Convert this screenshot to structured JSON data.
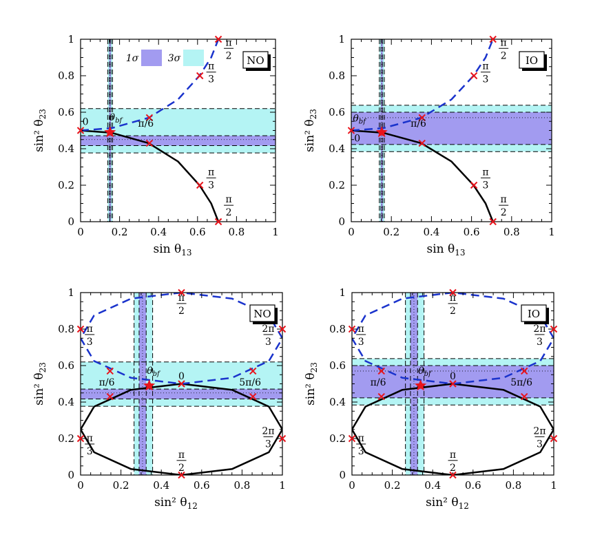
{
  "legend": {
    "one_sigma": "1σ",
    "three_sigma": "3σ"
  },
  "colors": {
    "one_sigma": "#a29bf0",
    "three_sigma": "#b4f4f4",
    "solid": "#000000",
    "dashed": "#1a33cc",
    "marker": "#e8141c",
    "star": "#e8141c"
  },
  "chart_data": [
    {
      "type": "line",
      "ordering": "NO",
      "xlabel": "sin θ",
      "xlabel_sub": "13",
      "ylabel": "sin² θ",
      "ylabel_sub": "23",
      "xlim": [
        0,
        1
      ],
      "ylim": [
        0,
        1
      ],
      "xticks": [
        "0",
        "0.2",
        "0.4",
        "0.6",
        "0.8",
        "1"
      ],
      "yticks": [
        "0",
        "0.2",
        "0.4",
        "0.6",
        "0.8",
        "1"
      ],
      "show_legend": true,
      "x_band": {
        "one_sigma": [
          0.147,
          0.156
        ],
        "three_sigma": [
          0.139,
          0.164
        ],
        "best_fit": 0.151
      },
      "y_band": {
        "one_sigma": [
          0.417,
          0.471
        ],
        "three_sigma": [
          0.377,
          0.62
        ],
        "best_fit": 0.45
      },
      "best_fit": [
        0.151,
        0.49
      ],
      "best_fit_label": "θbf",
      "curves": {
        "solid": {
          "x": [
            0,
            0.16,
            0.35,
            0.5,
            0.61,
            0.67,
            0.707
          ],
          "y": [
            0.5,
            0.487,
            0.43,
            0.33,
            0.2,
            0.1,
            0
          ]
        },
        "dashed": {
          "x": [
            0,
            0.16,
            0.35,
            0.5,
            0.61,
            0.67,
            0.707
          ],
          "y": [
            0.5,
            0.513,
            0.57,
            0.67,
            0.8,
            0.9,
            1
          ]
        }
      },
      "markers": [
        [
          0,
          0.5
        ],
        [
          0.353,
          0.43
        ],
        [
          0.612,
          0.2
        ],
        [
          0.707,
          0
        ],
        [
          0.353,
          0.57
        ],
        [
          0.612,
          0.8
        ],
        [
          0.707,
          1
        ]
      ],
      "annotations": [
        {
          "text": "0",
          "x": 0.025,
          "y": 0.53
        },
        {
          "text": "θbf",
          "x": 0.18,
          "y": 0.555
        },
        {
          "text": "π/6",
          "x": 0.335,
          "y": 0.52
        },
        {
          "frac": [
            "π",
            "3"
          ],
          "x": 0.67,
          "y": 0.82
        },
        {
          "frac": [
            "π",
            "2"
          ],
          "x": 0.76,
          "y": 0.95
        },
        {
          "frac": [
            "π",
            "3"
          ],
          "x": 0.67,
          "y": 0.24
        },
        {
          "frac": [
            "π",
            "2"
          ],
          "x": 0.76,
          "y": 0.09
        }
      ]
    },
    {
      "type": "line",
      "ordering": "IO",
      "xlabel": "sin θ",
      "xlabel_sub": "13",
      "ylabel": "sin² θ",
      "ylabel_sub": "23",
      "xlim": [
        0,
        1
      ],
      "ylim": [
        0,
        1
      ],
      "xticks": [
        "0",
        "0.2",
        "0.4",
        "0.6",
        "0.8",
        "1"
      ],
      "yticks": [
        "0",
        "0.2",
        "0.4",
        "0.6",
        "0.8",
        "1"
      ],
      "show_legend": false,
      "x_band": {
        "one_sigma": [
          0.148,
          0.157
        ],
        "three_sigma": [
          0.14,
          0.165
        ],
        "best_fit": 0.152
      },
      "y_band": {
        "one_sigma": [
          0.423,
          0.6
        ],
        "three_sigma": [
          0.384,
          0.638
        ],
        "best_fit": 0.57
      },
      "best_fit": [
        0.152,
        0.49
      ],
      "best_fit_label": "θbf",
      "curves": {
        "solid": {
          "x": [
            0,
            0.16,
            0.35,
            0.5,
            0.61,
            0.67,
            0.707
          ],
          "y": [
            0.5,
            0.487,
            0.43,
            0.33,
            0.2,
            0.1,
            0
          ]
        },
        "dashed": {
          "x": [
            0,
            0.16,
            0.35,
            0.5,
            0.61,
            0.67,
            0.707
          ],
          "y": [
            0.5,
            0.513,
            0.57,
            0.67,
            0.8,
            0.9,
            1
          ]
        }
      },
      "markers": [
        [
          0,
          0.5
        ],
        [
          0.353,
          0.43
        ],
        [
          0.612,
          0.2
        ],
        [
          0.707,
          0
        ],
        [
          0.353,
          0.57
        ],
        [
          0.612,
          0.8
        ],
        [
          0.707,
          1
        ]
      ],
      "annotations": [
        {
          "text": "0",
          "x": 0.03,
          "y": 0.44
        },
        {
          "text": "θbf",
          "x": 0.04,
          "y": 0.55
        },
        {
          "text": "π/6",
          "x": 0.335,
          "y": 0.52
        },
        {
          "frac": [
            "π",
            "3"
          ],
          "x": 0.67,
          "y": 0.82
        },
        {
          "frac": [
            "π",
            "2"
          ],
          "x": 0.76,
          "y": 0.95
        },
        {
          "frac": [
            "π",
            "3"
          ],
          "x": 0.67,
          "y": 0.24
        },
        {
          "frac": [
            "π",
            "2"
          ],
          "x": 0.76,
          "y": 0.09
        }
      ]
    },
    {
      "type": "line",
      "ordering": "NO",
      "xlabel": "sin² θ",
      "xlabel_sub": "12",
      "ylabel": "sin² θ",
      "ylabel_sub": "23",
      "xlim": [
        0,
        1
      ],
      "ylim": [
        0,
        1
      ],
      "xticks": [
        "0",
        "0.2",
        "0.4",
        "0.6",
        "0.8",
        "1"
      ],
      "yticks": [
        "0",
        "0.2",
        "0.4",
        "0.6",
        "0.8",
        "1"
      ],
      "show_legend": false,
      "x_band": {
        "one_sigma": [
          0.29,
          0.325
        ],
        "three_sigma": [
          0.265,
          0.357
        ],
        "best_fit": 0.307
      },
      "y_band": {
        "one_sigma": [
          0.417,
          0.471
        ],
        "three_sigma": [
          0.377,
          0.62
        ],
        "best_fit": 0.45
      },
      "best_fit": [
        0.34,
        0.49
      ],
      "best_fit_label": "θbf",
      "curves": {
        "solid": {
          "x": [
            0.5,
            0.75,
            0.933,
            1,
            0.933,
            0.75,
            0.5,
            0.25,
            0.067,
            0,
            0.067,
            0.25,
            0.5
          ],
          "y": [
            0.5,
            0.467,
            0.375,
            0.25,
            0.125,
            0.033,
            0,
            0.033,
            0.125,
            0.25,
            0.375,
            0.467,
            0.5
          ]
        },
        "dashed": {
          "x": [
            0.5,
            0.75,
            0.933,
            1,
            0.933,
            0.75,
            0.5,
            0.25,
            0.067,
            0,
            0.067,
            0.25,
            0.5
          ],
          "y": [
            0.5,
            0.533,
            0.625,
            0.75,
            0.875,
            0.967,
            1,
            0.967,
            0.875,
            0.75,
            0.625,
            0.533,
            0.5
          ]
        }
      },
      "markers": [
        [
          0.146,
          0.43
        ],
        [
          0.5,
          0.5
        ],
        [
          0.854,
          0.43
        ],
        [
          0,
          0.2
        ],
        [
          0.5,
          0
        ],
        [
          1,
          0.2
        ],
        [
          0.146,
          0.57
        ],
        [
          0.854,
          0.57
        ],
        [
          0,
          0.8
        ],
        [
          0.5,
          1
        ],
        [
          1,
          0.8
        ]
      ],
      "annotations": [
        {
          "text": "θbf",
          "x": 0.36,
          "y": 0.555
        },
        {
          "text": "0",
          "x": 0.5,
          "y": 0.525
        },
        {
          "text": "π/6",
          "x": 0.13,
          "y": 0.49
        },
        {
          "text": "5π/6",
          "x": 0.84,
          "y": 0.49
        },
        {
          "frac": [
            "π",
            "2"
          ],
          "x": 0.5,
          "y": 0.94
        },
        {
          "frac": [
            "π",
            "2"
          ],
          "x": 0.5,
          "y": 0.08
        },
        {
          "frac": [
            "π",
            "3"
          ],
          "x": 0.045,
          "y": 0.77
        },
        {
          "frac": [
            "π",
            "3"
          ],
          "x": 0.045,
          "y": 0.17
        },
        {
          "frac": [
            "2π",
            "3"
          ],
          "x": 0.93,
          "y": 0.77
        },
        {
          "frac": [
            "2π",
            "3"
          ],
          "x": 0.93,
          "y": 0.21
        }
      ]
    },
    {
      "type": "line",
      "ordering": "IO",
      "xlabel": "sin² θ",
      "xlabel_sub": "12",
      "ylabel": "sin² θ",
      "ylabel_sub": "23",
      "xlim": [
        0,
        1
      ],
      "ylim": [
        0,
        1
      ],
      "xticks": [
        "0",
        "0.2",
        "0.4",
        "0.6",
        "0.8",
        "1"
      ],
      "yticks": [
        "0",
        "0.2",
        "0.4",
        "0.6",
        "0.8",
        "1"
      ],
      "show_legend": false,
      "x_band": {
        "one_sigma": [
          0.29,
          0.325
        ],
        "three_sigma": [
          0.265,
          0.357
        ],
        "best_fit": 0.307
      },
      "y_band": {
        "one_sigma": [
          0.423,
          0.6
        ],
        "three_sigma": [
          0.384,
          0.638
        ],
        "best_fit": 0.57
      },
      "best_fit": [
        0.34,
        0.49
      ],
      "best_fit_label": "θbf",
      "curves": {
        "solid": {
          "x": [
            0.5,
            0.75,
            0.933,
            1,
            0.933,
            0.75,
            0.5,
            0.25,
            0.067,
            0,
            0.067,
            0.25,
            0.5
          ],
          "y": [
            0.5,
            0.467,
            0.375,
            0.25,
            0.125,
            0.033,
            0,
            0.033,
            0.125,
            0.25,
            0.375,
            0.467,
            0.5
          ]
        },
        "dashed": {
          "x": [
            0.5,
            0.75,
            0.933,
            1,
            0.933,
            0.75,
            0.5,
            0.25,
            0.067,
            0,
            0.067,
            0.25,
            0.5
          ],
          "y": [
            0.5,
            0.533,
            0.625,
            0.75,
            0.875,
            0.967,
            1,
            0.967,
            0.875,
            0.75,
            0.625,
            0.533,
            0.5
          ]
        }
      },
      "markers": [
        [
          0.146,
          0.43
        ],
        [
          0.5,
          0.5
        ],
        [
          0.854,
          0.43
        ],
        [
          0,
          0.2
        ],
        [
          0.5,
          0
        ],
        [
          1,
          0.2
        ],
        [
          0.146,
          0.57
        ],
        [
          0.854,
          0.57
        ],
        [
          0,
          0.8
        ],
        [
          0.5,
          1
        ],
        [
          1,
          0.8
        ]
      ],
      "annotations": [
        {
          "text": "θbf",
          "x": 0.36,
          "y": 0.555
        },
        {
          "text": "0",
          "x": 0.5,
          "y": 0.525
        },
        {
          "text": "π/6",
          "x": 0.13,
          "y": 0.49
        },
        {
          "text": "5π/6",
          "x": 0.84,
          "y": 0.49
        },
        {
          "frac": [
            "π",
            "2"
          ],
          "x": 0.5,
          "y": 0.94
        },
        {
          "frac": [
            "π",
            "2"
          ],
          "x": 0.5,
          "y": 0.08
        },
        {
          "frac": [
            "π",
            "3"
          ],
          "x": 0.045,
          "y": 0.77
        },
        {
          "frac": [
            "π",
            "3"
          ],
          "x": 0.045,
          "y": 0.17
        },
        {
          "frac": [
            "2π",
            "3"
          ],
          "x": 0.93,
          "y": 0.77
        },
        {
          "frac": [
            "2π",
            "3"
          ],
          "x": 0.93,
          "y": 0.21
        }
      ]
    }
  ]
}
